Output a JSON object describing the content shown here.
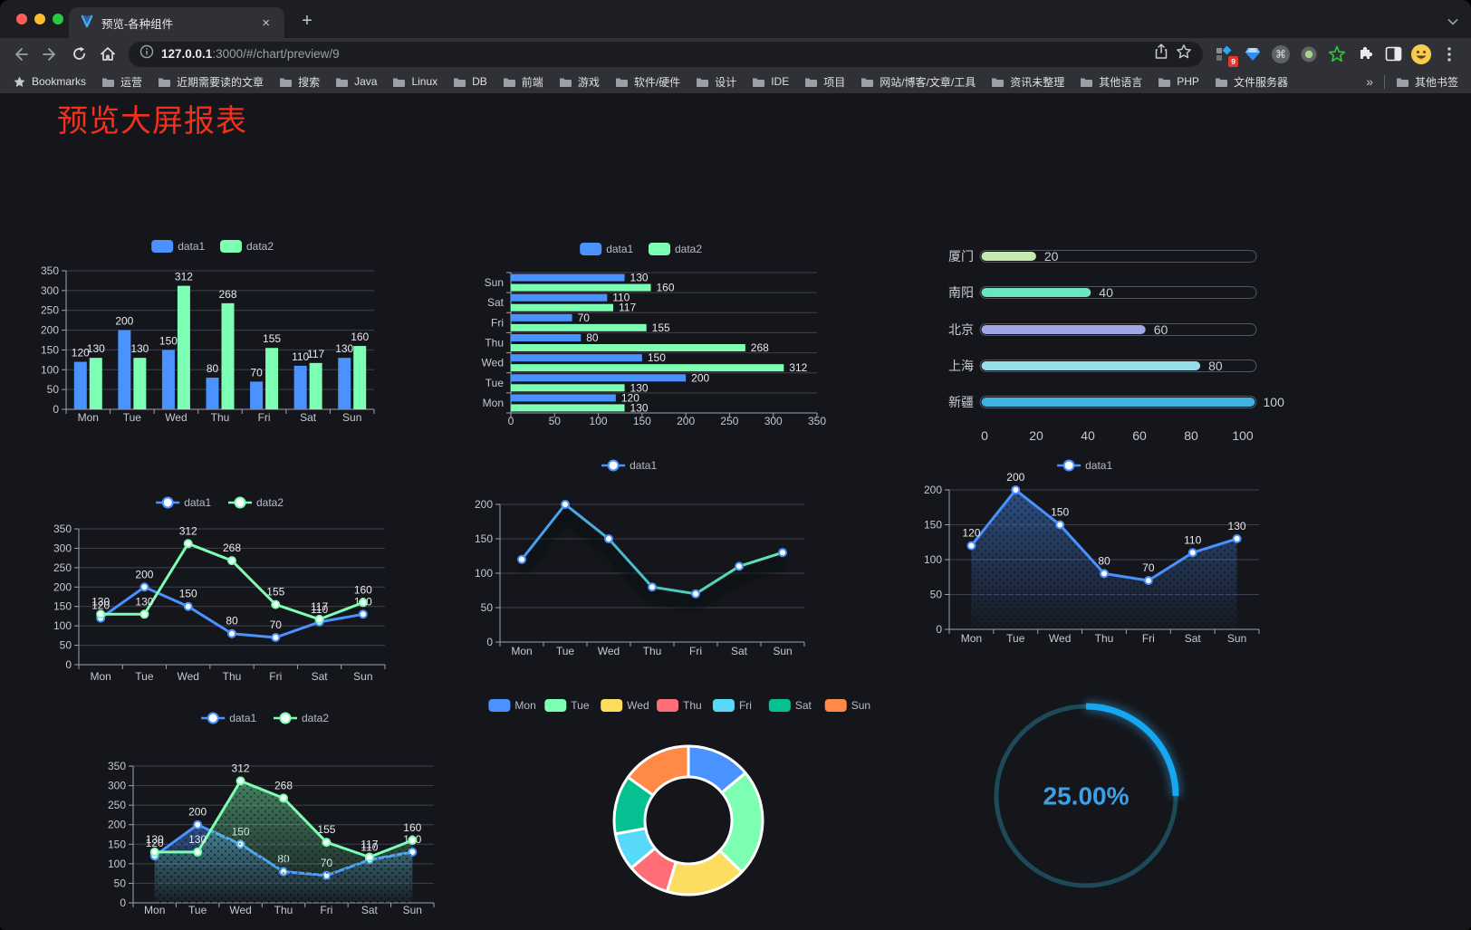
{
  "browser": {
    "tab": {
      "title": "预览-各种组件",
      "close_icon": "×"
    },
    "new_tab_icon": "+",
    "url": {
      "host": "127.0.0.1",
      "rest": ":3000/#/chart/preview/9"
    },
    "extension_badge": "9",
    "bookmarks_bar": {
      "label": "Bookmarks",
      "folders": [
        "运营",
        "近期需要读的文章",
        "搜索",
        "Java",
        "Linux",
        "DB",
        "前端",
        "游戏",
        "软件/硬件",
        "设计",
        "IDE",
        "项目",
        "网站/博客/文章/工具",
        "资讯未整理",
        "其他语言",
        "PHP",
        "文件服务器"
      ],
      "overflow": "»",
      "other": "其他书签"
    }
  },
  "page": {
    "title": "预览大屏报表",
    "title_color": "#f4301d",
    "background": "#15161b"
  },
  "theme": {
    "axis_label": "#c6c8d2",
    "grid_line": "#3e4050",
    "axis_line": "#9fa2b2",
    "data_label": "#e8e9ee",
    "legend_text": "#b9bac8",
    "series_colors": {
      "data1": "#4992ff",
      "data2": "#7cffb2"
    }
  },
  "chart_data": [
    {
      "mount": "c1",
      "type": "bar",
      "legend": "rect",
      "show_labels": true,
      "categories": [
        "Mon",
        "Tue",
        "Wed",
        "Thu",
        "Fri",
        "Sat",
        "Sun"
      ],
      "series": [
        {
          "name": "data1",
          "color": "#4992ff",
          "values": [
            120,
            200,
            150,
            80,
            70,
            110,
            130
          ]
        },
        {
          "name": "data2",
          "color": "#7cffb2",
          "values": [
            130,
            130,
            312,
            268,
            155,
            117,
            160
          ]
        }
      ],
      "ylim": [
        0,
        350
      ],
      "yticks": [
        0,
        50,
        100,
        150,
        200,
        250,
        300,
        350
      ]
    },
    {
      "mount": "c2",
      "type": "hbar",
      "legend": "rect",
      "show_labels": true,
      "categories_top_to_bottom": [
        "Sun",
        "Sat",
        "Fri",
        "Thu",
        "Wed",
        "Tue",
        "Mon"
      ],
      "series": [
        {
          "name": "data1",
          "color": "#4992ff",
          "values": [
            130,
            110,
            70,
            80,
            150,
            200,
            120
          ]
        },
        {
          "name": "data2",
          "color": "#7cffb2",
          "values": [
            160,
            117,
            155,
            268,
            312,
            130,
            130
          ]
        }
      ],
      "xlim": [
        0,
        350
      ],
      "xticks": [
        0,
        50,
        100,
        150,
        200,
        250,
        300,
        350
      ]
    },
    {
      "mount": "c3",
      "type": "capsule",
      "show_labels": true,
      "categories": [
        "厦门",
        "南阳",
        "北京",
        "上海",
        "新疆"
      ],
      "values": [
        20,
        40,
        60,
        80,
        100
      ],
      "colors": [
        "#c4ebad",
        "#6be6c1",
        "#a0a7e6",
        "#96dee8",
        "#3fb1e3"
      ],
      "xlim": [
        0,
        100
      ],
      "xticks": [
        0,
        20,
        40,
        60,
        80,
        100
      ]
    },
    {
      "mount": "c4",
      "type": "line",
      "legend": "line",
      "show_labels": true,
      "categories": [
        "Mon",
        "Tue",
        "Wed",
        "Thu",
        "Fri",
        "Sat",
        "Sun"
      ],
      "series": [
        {
          "name": "data1",
          "color": "#4992ff",
          "values": [
            120,
            200,
            150,
            80,
            70,
            110,
            130
          ]
        },
        {
          "name": "data2",
          "color": "#7cffb2",
          "values": [
            130,
            130,
            312,
            268,
            155,
            117,
            160
          ]
        }
      ],
      "ylim": [
        0,
        350
      ],
      "yticks": [
        0,
        50,
        100,
        150,
        200,
        250,
        300,
        350
      ]
    },
    {
      "mount": "c5",
      "type": "line",
      "legend": "line",
      "show_labels": false,
      "categories": [
        "Mon",
        "Tue",
        "Wed",
        "Thu",
        "Fri",
        "Sat",
        "Sun"
      ],
      "series": [
        {
          "name": "data1",
          "color": "#4992ff",
          "gradient": [
            "#4992ff",
            "#45c5c8",
            "#63f0a8"
          ],
          "shadow": true,
          "values": [
            120,
            200,
            150,
            80,
            70,
            110,
            130
          ]
        }
      ],
      "ylim": [
        0,
        200
      ],
      "yticks": [
        0,
        50,
        100,
        150,
        200
      ]
    },
    {
      "mount": "c6",
      "type": "line",
      "legend": "line",
      "show_labels": true,
      "decal": true,
      "categories": [
        "Mon",
        "Tue",
        "Wed",
        "Thu",
        "Fri",
        "Sat",
        "Sun"
      ],
      "series": [
        {
          "name": "data1",
          "color": "#4992ff",
          "area": true,
          "values": [
            120,
            200,
            150,
            80,
            70,
            110,
            130
          ]
        }
      ],
      "ylim": [
        0,
        200
      ],
      "yticks": [
        0,
        50,
        100,
        150,
        200
      ]
    },
    {
      "mount": "c7",
      "type": "line",
      "legend": "line",
      "show_labels": true,
      "decal": true,
      "categories": [
        "Mon",
        "Tue",
        "Wed",
        "Thu",
        "Fri",
        "Sat",
        "Sun"
      ],
      "series": [
        {
          "name": "data1",
          "color": "#4992ff",
          "area": true,
          "values": [
            120,
            200,
            150,
            80,
            70,
            110,
            130
          ]
        },
        {
          "name": "data2",
          "color": "#7cffb2",
          "area": true,
          "values": [
            130,
            130,
            312,
            268,
            155,
            117,
            160
          ]
        }
      ],
      "ylim": [
        0,
        350
      ],
      "yticks": [
        0,
        50,
        100,
        150,
        200,
        250,
        300,
        350
      ]
    },
    {
      "mount": "c8",
      "type": "pie",
      "legend": "rect",
      "categories": [
        "Mon",
        "Tue",
        "Wed",
        "Thu",
        "Fri",
        "Sat",
        "Sun"
      ],
      "values": [
        120,
        200,
        150,
        80,
        70,
        110,
        130
      ],
      "colors": [
        "#4992ff",
        "#7cffb2",
        "#fddd60",
        "#ff6e76",
        "#58d9f9",
        "#05c091",
        "#ff8a45"
      ]
    },
    {
      "mount": "c9",
      "type": "gauge",
      "value": 25,
      "label": "25.00%",
      "color": "#17a7f0",
      "track_color": "#1d4a57",
      "text_color": "#3ba0e6"
    }
  ]
}
